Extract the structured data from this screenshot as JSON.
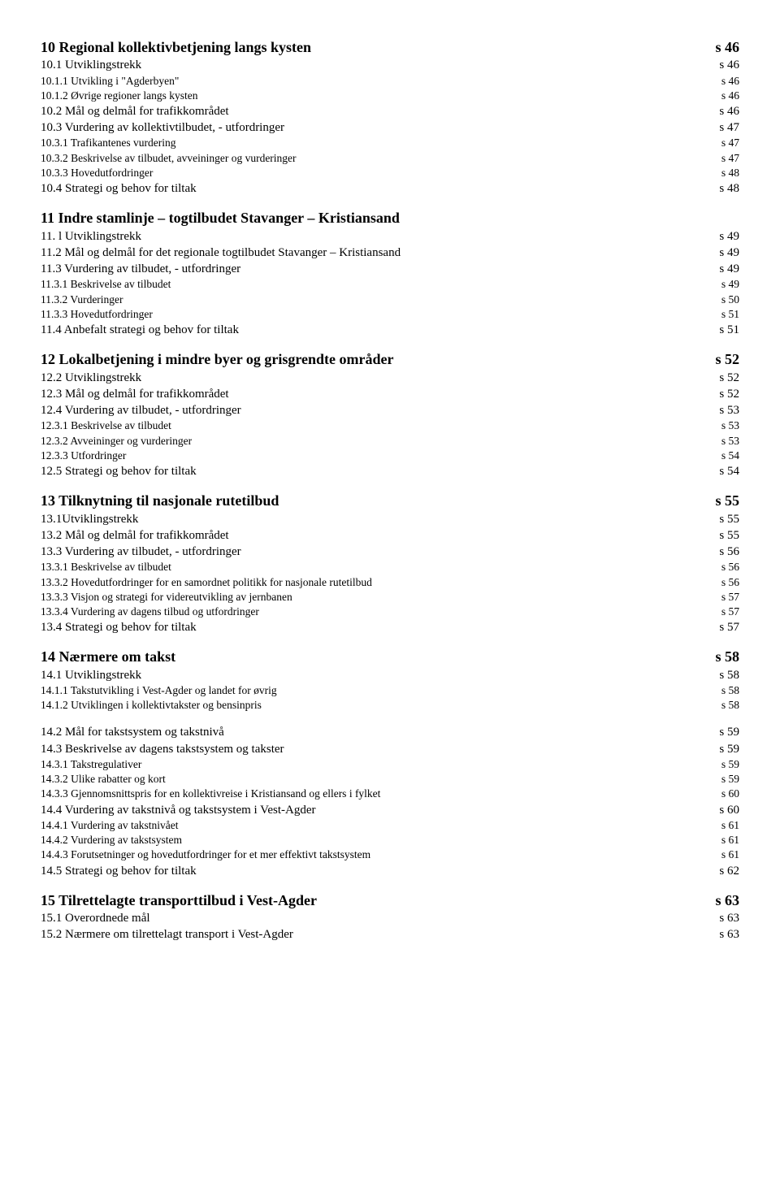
{
  "sections": [
    {
      "heading": {
        "label": "10 Regional kollektivbetjening langs kysten",
        "page": "s 46"
      },
      "items": [
        {
          "level": "h2",
          "label": "10.1   Utviklingstrekk",
          "page": "s 46"
        },
        {
          "level": "h3",
          "label": "10.1.1    Utvikling i \"Agderbyen\"",
          "page": "s 46"
        },
        {
          "level": "h3",
          "label": "10.1.2    Øvrige regioner langs kysten",
          "page": "s 46"
        },
        {
          "level": "h2",
          "label": "10.2   Mål og delmål for trafikkområdet",
          "page": "s 46"
        },
        {
          "level": "h2",
          "label": "10.3   Vurdering av kollektivtilbudet, - utfordringer",
          "page": "s 47"
        },
        {
          "level": "h3",
          "label": "10.3.1    Trafikantenes vurdering",
          "page": "s 47"
        },
        {
          "level": "h3",
          "label": "10.3.2    Beskrivelse av tilbudet, avveininger og vurderinger",
          "page": "s 47"
        },
        {
          "level": "h3",
          "label": "10.3.3    Hovedutfordringer",
          "page": "s 48"
        },
        {
          "level": "h2",
          "label": "10.4   Strategi og behov for tiltak",
          "page": "s 48"
        }
      ]
    },
    {
      "heading": {
        "label": "11 Indre stamlinje – togtilbudet Stavanger – Kristiansand",
        "page": ""
      },
      "items": [
        {
          "level": "h2",
          "label": "11. l Utviklingstrekk",
          "page": "s 49"
        },
        {
          "level": "h2",
          "label": "11.2   Mål og delmål for det regionale togtilbudet Stavanger – Kristiansand",
          "page": "s 49"
        },
        {
          "level": "h2",
          "label": "11.3 Vurdering av tilbudet, - utfordringer",
          "page": "s 49"
        },
        {
          "level": "h3",
          "label": "11.3.1    Beskrivelse av tilbudet",
          "page": "s 49"
        },
        {
          "level": "h3",
          "label": "11.3.2    Vurderinger",
          "page": "s 50"
        },
        {
          "level": "h3",
          "label": "11.3.3    Hovedutfordringer",
          "page": "s 51"
        },
        {
          "level": "h2",
          "label": "11.4 Anbefalt strategi og behov for tiltak",
          "page": "s 51"
        }
      ]
    },
    {
      "heading": {
        "label": "12 Lokalbetjening i mindre byer og grisgrendte områder",
        "page": "s 52"
      },
      "items": [
        {
          "level": "h2",
          "label": "12.2   Utviklingstrekk",
          "page": "s 52"
        },
        {
          "level": "h2",
          "label": "12.3   Mål og delmål for trafikkområdet",
          "page": "s 52"
        },
        {
          "level": "h2",
          "label": "12.4   Vurdering av tilbudet, - utfordringer",
          "page": "s 53"
        },
        {
          "level": "h3",
          "label": "12.3.1    Beskrivelse av tilbudet",
          "page": "s 53"
        },
        {
          "level": "h3",
          "label": "12.3.2    Avveininger og vurderinger",
          "page": "s 53"
        },
        {
          "level": "h3",
          "label": "12.3.3    Utfordringer",
          "page": "s 54"
        },
        {
          "level": "h2",
          "label": "12.5   Strategi og behov for tiltak",
          "page": "s 54"
        }
      ]
    },
    {
      "heading": {
        "label": "13 Tilknytning til nasjonale rutetilbud",
        "page": "s 55"
      },
      "items": [
        {
          "level": "h2",
          "label": "13.1Utviklingstrekk",
          "page": "s 55"
        },
        {
          "level": "h2",
          "label": "13.2   Mål og delmål for trafikkområdet",
          "page": "s 55"
        },
        {
          "level": "h2",
          "label": "13.3   Vurdering av tilbudet, - utfordringer",
          "page": "s 56"
        },
        {
          "level": "h3",
          "label": "13.3.1    Beskrivelse av tilbudet",
          "page": "s 56"
        },
        {
          "level": "h3",
          "label": "13.3.2    Hovedutfordringer for en samordnet politikk for nasjonale rutetilbud",
          "page": "s 56"
        },
        {
          "level": "h3",
          "label": "13.3.3    Visjon og strategi for videreutvikling av jernbanen",
          "page": "s 57"
        },
        {
          "level": "h3",
          "label": "13.3.4    Vurdering av dagens tilbud og utfordringer",
          "page": "s 57"
        },
        {
          "level": "h2",
          "label": "13.4 Strategi og behov for tiltak",
          "page": "s 57"
        }
      ]
    },
    {
      "heading": {
        "label": "14 Nærmere om takst",
        "page": "s 58"
      },
      "items": [
        {
          "level": "h2",
          "label": "14.1 Utviklingstrekk",
          "page": "s 58"
        },
        {
          "level": "h3",
          "label": "14.1.1    Takstutvikling i Vest-Agder og landet for øvrig",
          "page": "s 58"
        },
        {
          "level": "h3",
          "label": "14.1.2    Utviklingen i kollektivtakster og bensinpris",
          "page": "s 58"
        }
      ]
    },
    {
      "heading": null,
      "items": [
        {
          "level": "h2",
          "label": "14.2 Mål for takstsystem og takstnivå",
          "page": "s 59"
        },
        {
          "level": "h2",
          "label": "14.3 Beskrivelse av dagens takstsystem og takster",
          "page": "s 59"
        },
        {
          "level": "h3",
          "label": "14.3.1    Takstregulativer",
          "page": "s 59"
        },
        {
          "level": "h3",
          "label": "14.3.2    Ulike rabatter og kort",
          "page": "s 59"
        },
        {
          "level": "h3",
          "label": "14.3.3    Gjennomsnittspris for en kollektivreise i Kristiansand og ellers i fylket",
          "page": "s 60"
        },
        {
          "level": "h2",
          "label": "14.4 Vurdering av takstnivå og takstsystem i Vest-Agder",
          "page": "s 60"
        },
        {
          "level": "h3",
          "label": "14.4.1    Vurdering av takstnivået",
          "page": "s 61"
        },
        {
          "level": "h3",
          "label": "14.4.2    Vurdering av takstsystem",
          "page": "s 61"
        },
        {
          "level": "h3",
          "label": "14.4.3    Forutsetninger og hovedutfordringer for et mer effektivt takstsystem",
          "page": "s 61"
        },
        {
          "level": "h2",
          "label": "14.5 Strategi og behov for tiltak",
          "page": "s 62"
        }
      ]
    },
    {
      "heading": {
        "label": "15 Tilrettelagte transporttilbud i Vest-Agder",
        "page": "s 63"
      },
      "items": [
        {
          "level": "h2",
          "label": "15.1 Overordnede mål",
          "page": "s 63"
        },
        {
          "level": "h2",
          "label": "15.2 Nærmere om tilrettelagt transport i Vest-Agder",
          "page": "s 63"
        }
      ]
    }
  ]
}
